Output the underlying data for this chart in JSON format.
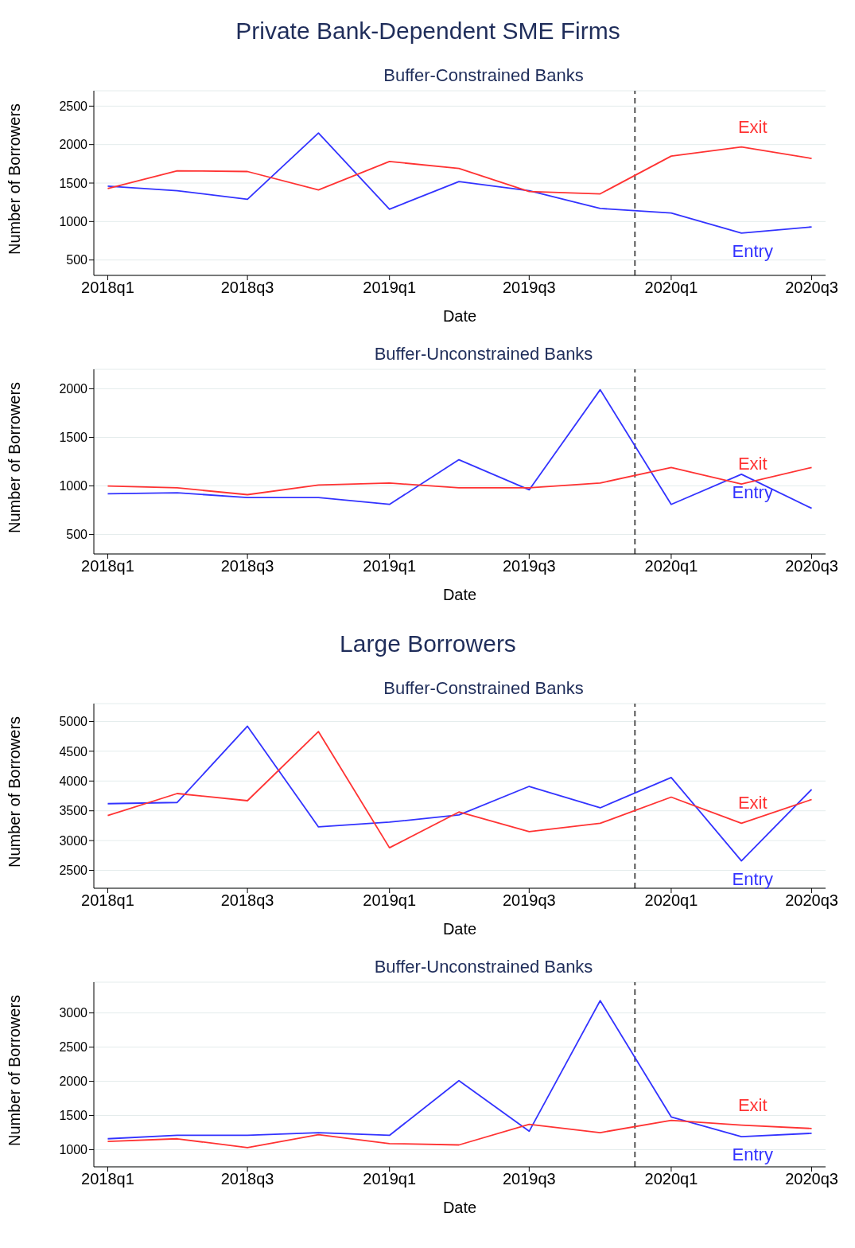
{
  "chart_data": [
    {
      "type": "other",
      "title": "Private Bank-Dependent SME Firms"
    },
    {
      "type": "line",
      "title": "Buffer-Constrained Banks",
      "xlabel": "Date",
      "ylabel": "Number of Borrowers",
      "x": [
        "2018-01",
        "2018-04",
        "2018-07",
        "2018-10",
        "2019-01",
        "2019-04",
        "2019-07",
        "2019-10",
        "2020-01",
        "2020-04",
        "2020-07"
      ],
      "xlim": [
        "2017-12-14",
        "2020-07-19"
      ],
      "xticks": [
        {
          "value": "2018-01",
          "label": "2018q1"
        },
        {
          "value": "2018-07",
          "label": "2018q3"
        },
        {
          "value": "2019-01",
          "label": "2019q1"
        },
        {
          "value": "2019-07",
          "label": "2019q3"
        },
        {
          "value": "2020-01",
          "label": "2020q1"
        },
        {
          "value": "2020-07",
          "label": "2020q3"
        }
      ],
      "ylim": [
        300,
        2700
      ],
      "yticks": [
        500,
        1000,
        1500,
        2000,
        2500
      ],
      "grid": "y",
      "legend": false,
      "marker": "none",
      "line_style": "solid",
      "ref_lines": [
        {
          "axis": "x",
          "value": "2019-11-15",
          "color": "#555555",
          "line_style": "dashed"
        }
      ],
      "series": [
        {
          "name": "Entry",
          "color": "#3333ff",
          "values": [
            1460,
            1400,
            1290,
            2150,
            1160,
            1520,
            1400,
            1170,
            1110,
            850,
            930
          ]
        },
        {
          "name": "Exit",
          "color": "#ff3333",
          "values": [
            1430,
            1660,
            1650,
            1410,
            1780,
            1690,
            1390,
            1360,
            1850,
            1970,
            1820
          ]
        }
      ]
    },
    {
      "type": "line",
      "title": "Buffer-Unconstrained Banks",
      "xlabel": "Date",
      "ylabel": "Number of Borrowers",
      "x": [
        "2018-01",
        "2018-04",
        "2018-07",
        "2018-10",
        "2019-01",
        "2019-04",
        "2019-07",
        "2019-10",
        "2020-01",
        "2020-04",
        "2020-07"
      ],
      "xlim": [
        "2017-12-14",
        "2020-07-19"
      ],
      "xticks": [
        {
          "value": "2018-01",
          "label": "2018q1"
        },
        {
          "value": "2018-07",
          "label": "2018q3"
        },
        {
          "value": "2019-01",
          "label": "2019q1"
        },
        {
          "value": "2019-07",
          "label": "2019q3"
        },
        {
          "value": "2020-01",
          "label": "2020q1"
        },
        {
          "value": "2020-07",
          "label": "2020q3"
        }
      ],
      "ylim": [
        300,
        2200
      ],
      "yticks": [
        500,
        1000,
        1500,
        2000
      ],
      "grid": "y",
      "legend": false,
      "marker": "none",
      "line_style": "solid",
      "ref_lines": [
        {
          "axis": "x",
          "value": "2019-11-15",
          "color": "#555555",
          "line_style": "dashed"
        }
      ],
      "series": [
        {
          "name": "Entry",
          "color": "#3333ff",
          "values": [
            920,
            930,
            880,
            880,
            810,
            1270,
            960,
            1990,
            810,
            1120,
            770
          ]
        },
        {
          "name": "Exit",
          "color": "#ff3333",
          "values": [
            1000,
            980,
            910,
            1010,
            1030,
            980,
            980,
            1030,
            1190,
            1020,
            1190
          ]
        }
      ]
    },
    {
      "type": "other",
      "title": "Large Borrowers"
    },
    {
      "type": "line",
      "title": "Buffer-Constrained Banks",
      "xlabel": "Date",
      "ylabel": "Number of Borrowers",
      "x": [
        "2018-01",
        "2018-04",
        "2018-07",
        "2018-10",
        "2019-01",
        "2019-04",
        "2019-07",
        "2019-10",
        "2020-01",
        "2020-04",
        "2020-07"
      ],
      "xlim": [
        "2017-12-14",
        "2020-07-19"
      ],
      "xticks": [
        {
          "value": "2018-01",
          "label": "2018q1"
        },
        {
          "value": "2018-07",
          "label": "2018q3"
        },
        {
          "value": "2019-01",
          "label": "2019q1"
        },
        {
          "value": "2019-07",
          "label": "2019q3"
        },
        {
          "value": "2020-01",
          "label": "2020q1"
        },
        {
          "value": "2020-07",
          "label": "2020q3"
        }
      ],
      "ylim": [
        2200,
        5300
      ],
      "yticks": [
        2500,
        3000,
        3500,
        4000,
        4500,
        5000
      ],
      "grid": "y",
      "legend": false,
      "marker": "none",
      "line_style": "solid",
      "ref_lines": [
        {
          "axis": "x",
          "value": "2019-11-15",
          "color": "#555555",
          "line_style": "dashed"
        }
      ],
      "series": [
        {
          "name": "Entry",
          "color": "#3333ff",
          "values": [
            3620,
            3640,
            4920,
            3230,
            3310,
            3430,
            3910,
            3550,
            4060,
            2660,
            3860
          ]
        },
        {
          "name": "Exit",
          "color": "#ff3333",
          "values": [
            3420,
            3790,
            3670,
            4830,
            2880,
            3480,
            3150,
            3290,
            3730,
            3290,
            3690
          ]
        }
      ]
    },
    {
      "type": "line",
      "title": "Buffer-Unconstrained Banks",
      "xlabel": "Date",
      "ylabel": "Number of Borrowers",
      "x": [
        "2018-01",
        "2018-04",
        "2018-07",
        "2018-10",
        "2019-01",
        "2019-04",
        "2019-07",
        "2019-10",
        "2020-01",
        "2020-04",
        "2020-07"
      ],
      "xlim": [
        "2017-12-14",
        "2020-07-19"
      ],
      "xticks": [
        {
          "value": "2018-01",
          "label": "2018q1"
        },
        {
          "value": "2018-07",
          "label": "2018q3"
        },
        {
          "value": "2019-01",
          "label": "2019q1"
        },
        {
          "value": "2019-07",
          "label": "2019q3"
        },
        {
          "value": "2020-01",
          "label": "2020q1"
        },
        {
          "value": "2020-07",
          "label": "2020q3"
        }
      ],
      "ylim": [
        750,
        3450
      ],
      "yticks": [
        1000,
        1500,
        2000,
        2500,
        3000
      ],
      "grid": "y",
      "legend": false,
      "marker": "none",
      "line_style": "solid",
      "ref_lines": [
        {
          "axis": "x",
          "value": "2019-11-15",
          "color": "#555555",
          "line_style": "dashed"
        }
      ],
      "series": [
        {
          "name": "Entry",
          "color": "#3333ff",
          "values": [
            1160,
            1210,
            1210,
            1250,
            1210,
            2010,
            1270,
            3180,
            1480,
            1190,
            1240
          ]
        },
        {
          "name": "Exit",
          "color": "#ff3333",
          "values": [
            1120,
            1160,
            1030,
            1220,
            1090,
            1070,
            1370,
            1250,
            1430,
            1360,
            1310
          ]
        }
      ]
    }
  ]
}
